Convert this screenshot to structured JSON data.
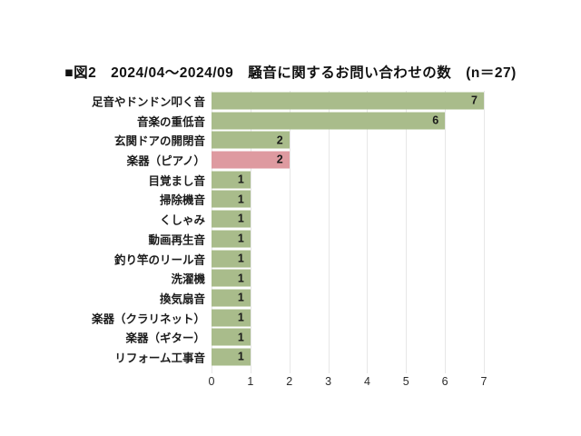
{
  "chart_data": {
    "type": "bar",
    "orientation": "horizontal",
    "title": "■図2　2024/04～2024/09　騒音に関するお問い合わせの数　(n＝27)",
    "n_total": 27,
    "categories": [
      "足音やドンドン叩く音",
      "音楽の重低音",
      "玄関ドアの開閉音",
      "楽器（ピアノ）",
      "目覚まし音",
      "掃除機音",
      "くしゃみ",
      "動画再生音",
      "釣り竿のリール音",
      "洗濯機",
      "換気扇音",
      "楽器（クラリネット）",
      "楽器（ギター）",
      "リフォーム工事音"
    ],
    "values": [
      7,
      6,
      2,
      2,
      1,
      1,
      1,
      1,
      1,
      1,
      1,
      1,
      1,
      1
    ],
    "colors": [
      "#a9bc8b",
      "#a9bc8b",
      "#a9bc8b",
      "#de9aa0",
      "#a9bc8b",
      "#a9bc8b",
      "#a9bc8b",
      "#a9bc8b",
      "#a9bc8b",
      "#a9bc8b",
      "#a9bc8b",
      "#a9bc8b",
      "#a9bc8b",
      "#a9bc8b"
    ],
    "bar_color_default": "#a9bc8b",
    "bar_color_highlight": "#de9aa0",
    "xlabel": "",
    "ylabel": "",
    "xlim": [
      0,
      7
    ],
    "xticks": [
      0,
      1,
      2,
      3,
      4,
      5,
      6,
      7
    ],
    "grid": "vertical",
    "gridline_color": "#e7e7e7",
    "value_label_position": "inside-end",
    "background_color": "#ffffff"
  }
}
